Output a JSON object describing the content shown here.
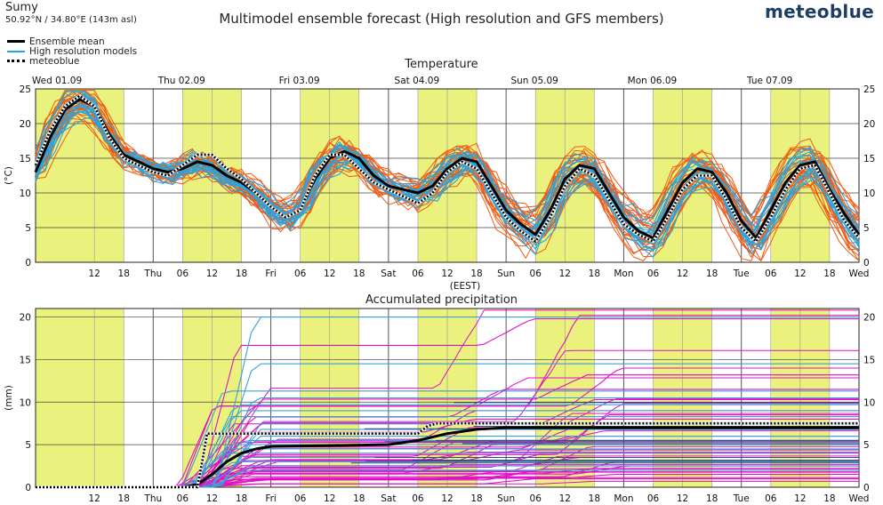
{
  "header": {
    "location": "Sumy",
    "coordinates": "50.92°N / 34.80°E (143m asl)",
    "title": "Multimodel ensemble forecast (High resolution and GFS members)",
    "brand": "meteoblue"
  },
  "legend": {
    "items": [
      {
        "label": "Ensemble mean",
        "style": "solid-black-thick"
      },
      {
        "label": "High resolution models",
        "style": "solid-light-blue"
      },
      {
        "label": "meteoblue",
        "style": "dotted-black"
      }
    ]
  },
  "colors": {
    "ensemble_mean": "#000000",
    "high_resolution": "#22a7e6",
    "gfs_temperature": "#f05a14",
    "gfs_precipitation": "#e010c8",
    "precip_hires": "#3aa0d8",
    "daylight_band": "#e8f06e",
    "grid": "#7a7a7a",
    "brand": "#1d3f66"
  },
  "chart_data": [
    {
      "id": "temperature",
      "type": "line",
      "title": "Temperature",
      "ylabel": "(°C)",
      "xlabel": "(EEST)",
      "ylim": [
        0,
        25
      ],
      "yticks": [
        0,
        5,
        10,
        15,
        20,
        25
      ],
      "x_unit": "hours from Wed 01.09 00:00 (EEST)",
      "xlim": [
        0,
        168
      ],
      "day_labels": [
        "Wed 01.09",
        "Thu 02.09",
        "Fri 03.09",
        "Sat 04.09",
        "Sun 05.09",
        "Mon 06.09",
        "Tue 07.09"
      ],
      "x_ticks": [
        {
          "h": 12,
          "label": "12"
        },
        {
          "h": 18,
          "label": "18"
        },
        {
          "h": 24,
          "label": "Thu"
        },
        {
          "h": 30,
          "label": "06"
        },
        {
          "h": 36,
          "label": "12"
        },
        {
          "h": 42,
          "label": "18"
        },
        {
          "h": 48,
          "label": "Fri"
        },
        {
          "h": 54,
          "label": "06"
        },
        {
          "h": 60,
          "label": "12"
        },
        {
          "h": 66,
          "label": "18"
        },
        {
          "h": 72,
          "label": "Sat"
        },
        {
          "h": 78,
          "label": "06"
        },
        {
          "h": 84,
          "label": "12"
        },
        {
          "h": 90,
          "label": "18"
        },
        {
          "h": 96,
          "label": "Sun"
        },
        {
          "h": 102,
          "label": "06"
        },
        {
          "h": 108,
          "label": "12"
        },
        {
          "h": 114,
          "label": "18"
        },
        {
          "h": 120,
          "label": "Mon"
        },
        {
          "h": 126,
          "label": "06"
        },
        {
          "h": 132,
          "label": "12"
        },
        {
          "h": 138,
          "label": "18"
        },
        {
          "h": 144,
          "label": "Tue"
        },
        {
          "h": 150,
          "label": "06"
        },
        {
          "h": 156,
          "label": "12"
        },
        {
          "h": 162,
          "label": "18"
        },
        {
          "h": 168,
          "label": "Wed"
        }
      ],
      "ensemble_mean": {
        "x": [
          0,
          3,
          6,
          9,
          12,
          15,
          18,
          21,
          24,
          27,
          30,
          33,
          36,
          39,
          42,
          45,
          48,
          51,
          54,
          57,
          60,
          63,
          66,
          69,
          72,
          75,
          78,
          81,
          84,
          87,
          90,
          93,
          96,
          99,
          102,
          105,
          108,
          111,
          114,
          117,
          120,
          123,
          126,
          129,
          132,
          135,
          138,
          141,
          144,
          147,
          150,
          153,
          156,
          159,
          162,
          165,
          168
        ],
        "y": [
          13,
          18,
          22,
          23.5,
          22.5,
          18.5,
          15.5,
          14.5,
          13.5,
          13,
          13.5,
          14.5,
          14,
          12.5,
          11.5,
          10,
          8,
          6.5,
          7.5,
          12,
          15,
          16,
          15,
          12.5,
          11,
          10.5,
          10,
          11,
          13.5,
          15,
          14.5,
          11,
          7.5,
          5.5,
          4,
          7.5,
          12,
          14,
          13.5,
          10,
          6.5,
          4.5,
          3.5,
          7.5,
          11.5,
          13.5,
          13,
          10,
          6,
          3.5,
          7.5,
          11.5,
          14,
          14.5,
          10.5,
          7,
          4
        ]
      },
      "meteoblue": {
        "x": [
          0,
          3,
          6,
          9,
          12,
          15,
          18,
          21,
          24,
          27,
          30,
          33,
          36,
          39,
          42,
          45,
          48,
          51,
          54,
          57,
          60,
          63,
          66,
          69,
          72,
          75,
          78,
          81,
          84,
          87,
          90,
          93,
          96,
          99,
          102,
          105,
          108,
          111,
          114,
          117,
          120,
          123,
          126,
          129,
          132,
          135,
          138,
          141,
          144,
          147,
          150,
          153,
          156,
          159,
          162,
          165,
          168
        ],
        "y": [
          14,
          19,
          22.5,
          24,
          22.5,
          18,
          15,
          14,
          13,
          12.5,
          14,
          15.5,
          15.5,
          13.5,
          12,
          10,
          8,
          6.5,
          7.5,
          12.5,
          15.5,
          15.5,
          13.5,
          11.5,
          10.5,
          9.5,
          8.5,
          10,
          13,
          14.5,
          13.5,
          10,
          6.5,
          4.5,
          3,
          6.5,
          11,
          13.5,
          12.5,
          9,
          5.5,
          4,
          3,
          6.5,
          10.5,
          12.5,
          12.5,
          9,
          5,
          3,
          6.5,
          10.5,
          13.5,
          14,
          10,
          6,
          3.5
        ]
      },
      "members_note": "visual ensemble spread only"
    },
    {
      "id": "precipitation",
      "type": "line",
      "title": "Accumulated precipitation",
      "ylabel": "(mm)",
      "ylim": [
        0,
        21
      ],
      "yticks": [
        0,
        5,
        10,
        15,
        20
      ],
      "x_unit": "hours from Wed 01.09 00:00 (EEST)",
      "xlim": [
        0,
        168
      ],
      "x_ticks": [
        {
          "h": 12,
          "label": "12"
        },
        {
          "h": 18,
          "label": "18"
        },
        {
          "h": 24,
          "label": "Thu"
        },
        {
          "h": 30,
          "label": "06"
        },
        {
          "h": 36,
          "label": "12"
        },
        {
          "h": 42,
          "label": "18"
        },
        {
          "h": 48,
          "label": "Fri"
        },
        {
          "h": 54,
          "label": "06"
        },
        {
          "h": 60,
          "label": "12"
        },
        {
          "h": 66,
          "label": "18"
        },
        {
          "h": 72,
          "label": "Sat"
        },
        {
          "h": 78,
          "label": "06"
        },
        {
          "h": 84,
          "label": "12"
        },
        {
          "h": 90,
          "label": "18"
        },
        {
          "h": 96,
          "label": "Sun"
        },
        {
          "h": 102,
          "label": "06"
        },
        {
          "h": 108,
          "label": "12"
        },
        {
          "h": 114,
          "label": "18"
        },
        {
          "h": 120,
          "label": "Mon"
        },
        {
          "h": 126,
          "label": "06"
        },
        {
          "h": 132,
          "label": "12"
        },
        {
          "h": 138,
          "label": "18"
        },
        {
          "h": 144,
          "label": "Tue"
        },
        {
          "h": 150,
          "label": "06"
        },
        {
          "h": 156,
          "label": "12"
        },
        {
          "h": 162,
          "label": "18"
        },
        {
          "h": 168,
          "label": "Wed"
        }
      ],
      "ensemble_mean": {
        "x": [
          0,
          24,
          30,
          33,
          36,
          39,
          42,
          45,
          48,
          60,
          72,
          78,
          84,
          90,
          96,
          120,
          144,
          168
        ],
        "y": [
          0,
          0,
          0,
          0.3,
          1.5,
          3,
          4,
          4.5,
          4.8,
          4.9,
          5.0,
          5.5,
          6.3,
          6.8,
          7.0,
          7.0,
          7.0,
          7.0
        ]
      },
      "meteoblue": {
        "x": [
          0,
          24,
          33,
          34,
          35,
          48,
          72,
          78,
          80,
          82,
          96,
          120,
          144,
          168
        ],
        "y": [
          0,
          0,
          0,
          3,
          6.3,
          6.3,
          6.3,
          6.3,
          7.2,
          7.5,
          7.5,
          7.5,
          7.5,
          7.5
        ]
      },
      "gfs_final_totals": [
        20.2,
        19.8,
        14.0,
        13.2,
        11.5,
        10.3,
        9.0,
        8.5,
        8.0,
        7.0,
        6.0,
        5.5,
        5.0,
        4.0,
        3.5,
        3.0,
        2.5,
        2.0,
        1.5,
        1.0
      ],
      "hires_final_totals": [
        20.0,
        14.5,
        11.3,
        10.5,
        9.7,
        9.0,
        8.3,
        7.5,
        6.8,
        6.0,
        5.5,
        5.0,
        4.5,
        4.0,
        3.5,
        3.0,
        2.5,
        2.0
      ]
    }
  ]
}
